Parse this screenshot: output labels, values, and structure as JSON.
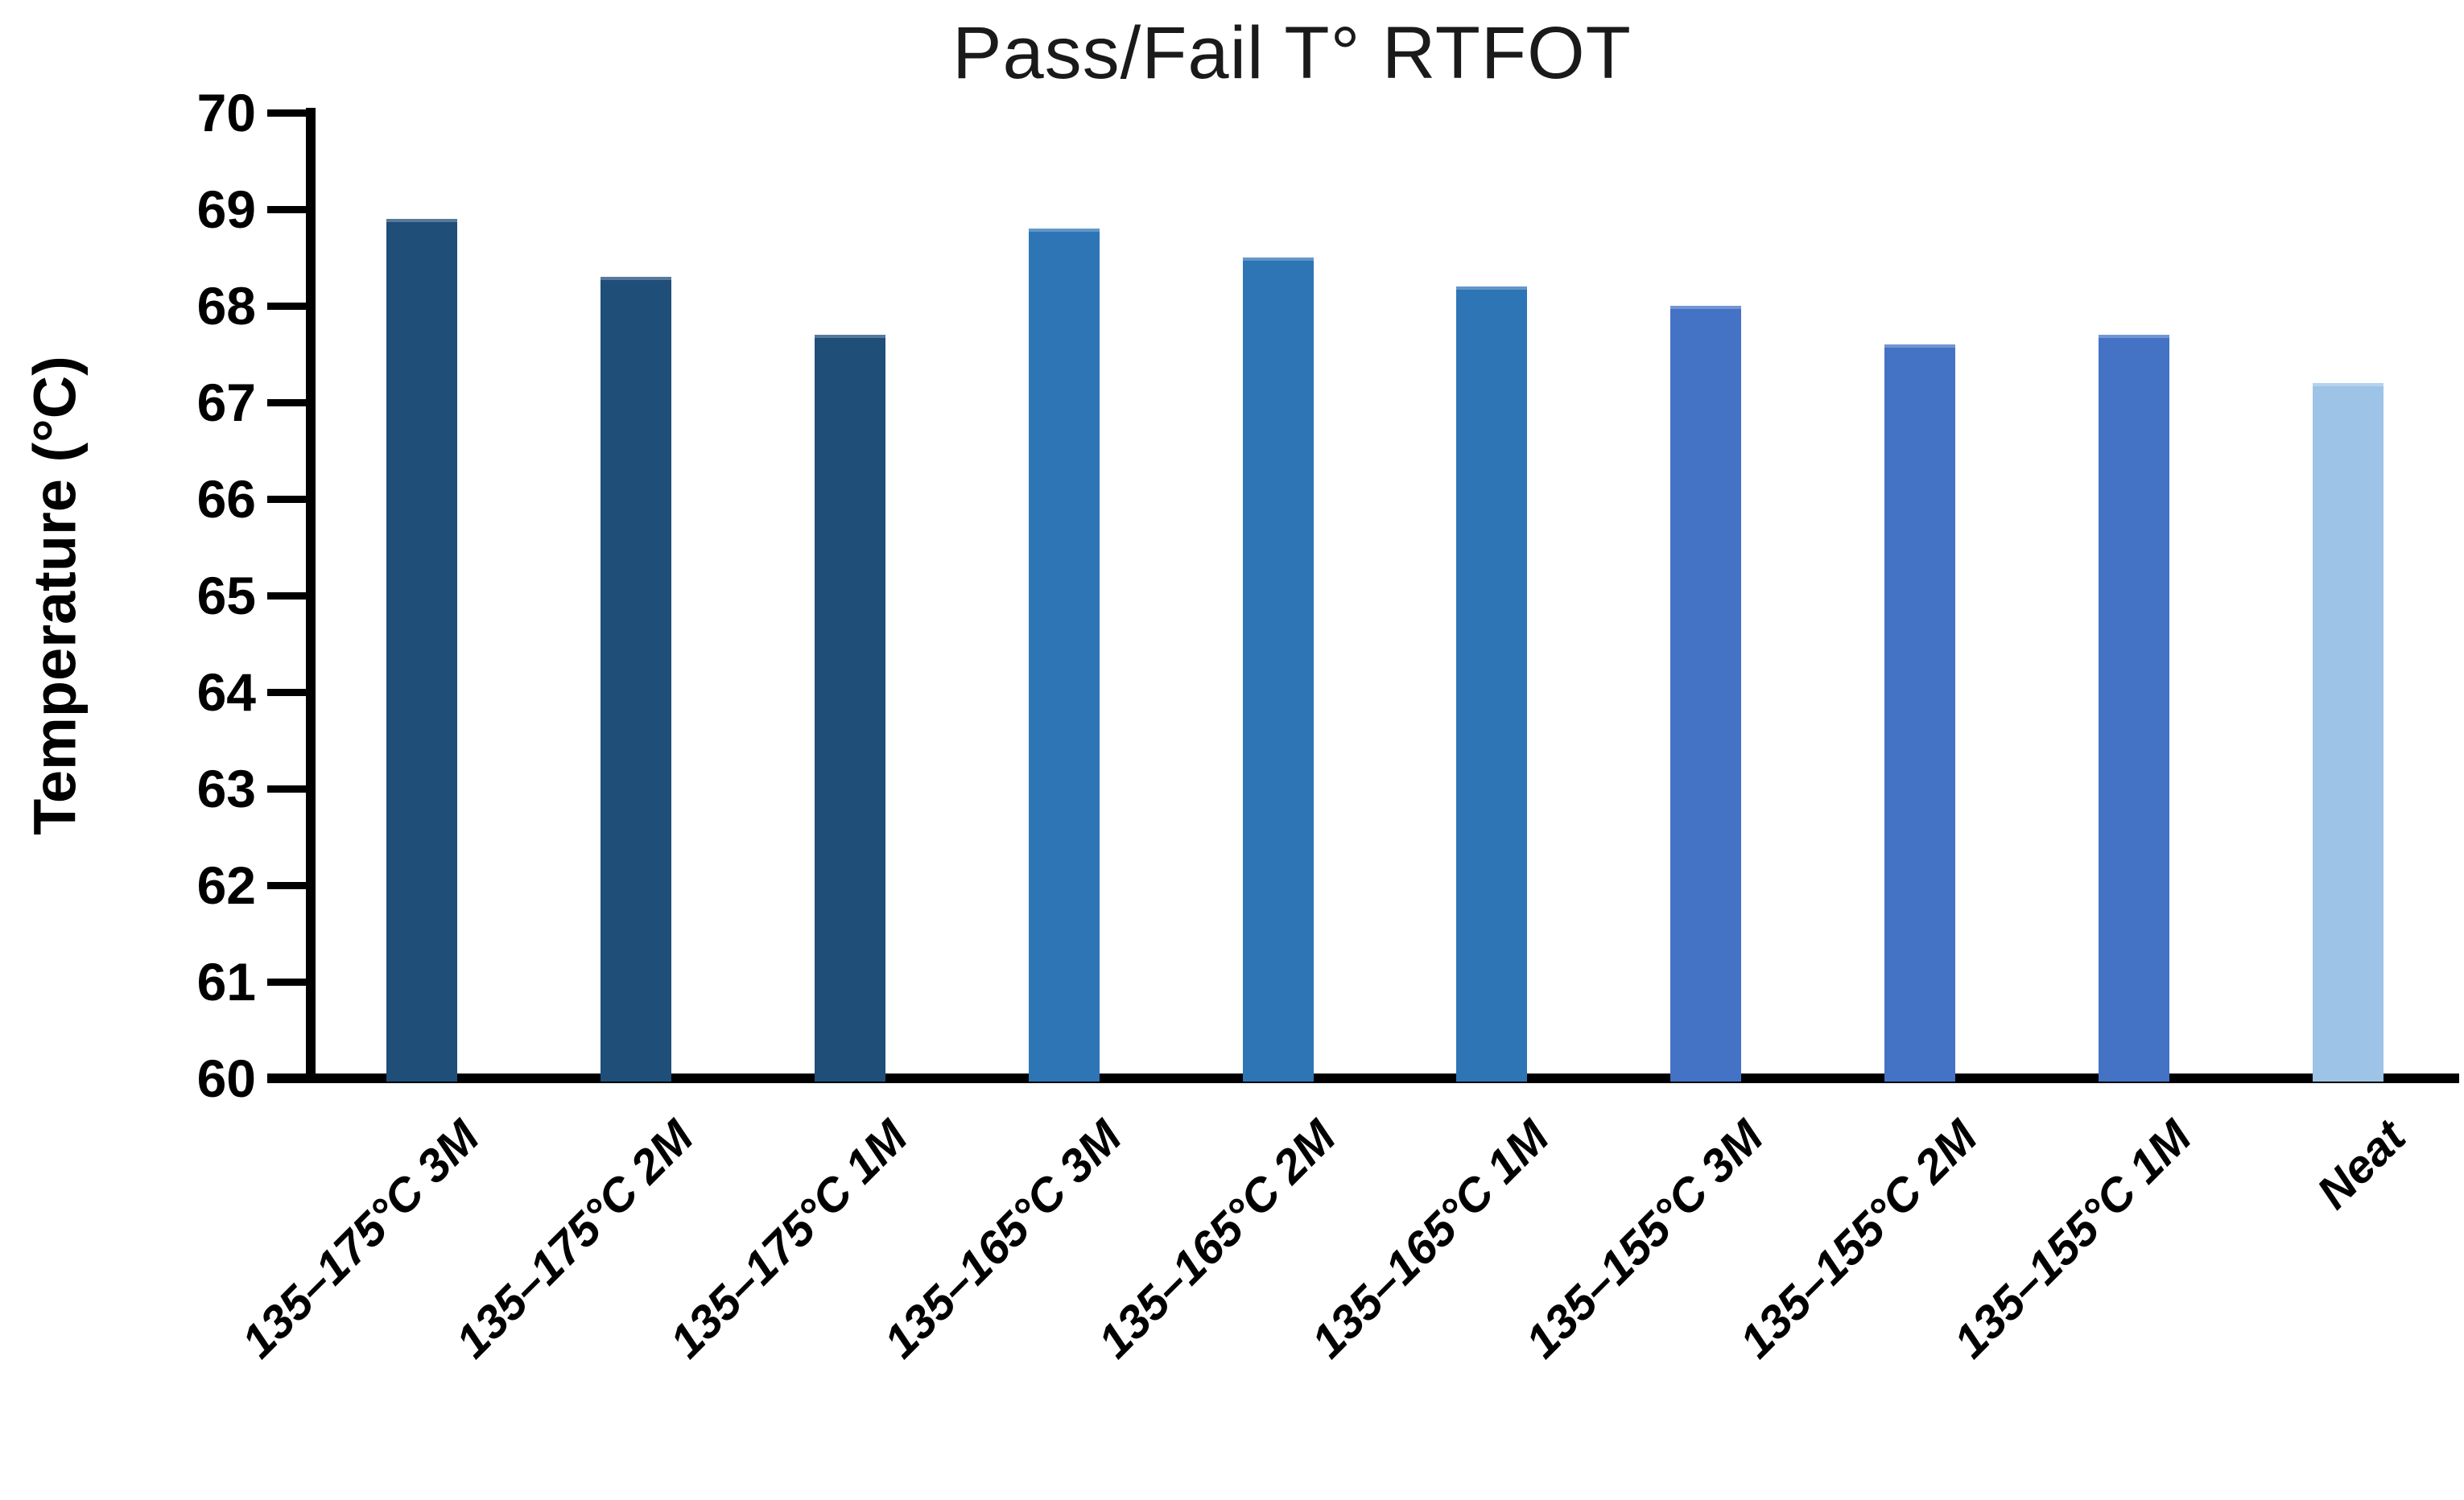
{
  "chart_data": {
    "type": "bar",
    "title": "Pass/Fail T° RTFOT",
    "xlabel": "",
    "ylabel": "Temperature (°C)",
    "ylim": [
      60,
      70
    ],
    "yticks": [
      60,
      61,
      62,
      63,
      64,
      65,
      66,
      67,
      68,
      69,
      70
    ],
    "grid": false,
    "legend": "none",
    "categories": [
      "135–175°C 3M",
      "135–175°C 2M",
      "135–175°C 1M",
      "135–165°C 3M",
      "135–165°C 2M",
      "135–165°C 1M",
      "135–155°C 3M",
      "135–155°C 2M",
      "135–155°C 1M",
      "Neat"
    ],
    "values": [
      68.9,
      68.3,
      67.7,
      68.8,
      68.5,
      68.2,
      68.0,
      67.6,
      67.7,
      67.2
    ],
    "bar_colors": [
      "#1F4E79",
      "#1F4E79",
      "#1F4E79",
      "#2E75B6",
      "#2E75B6",
      "#2E75B6",
      "#4472C4",
      "#4472C4",
      "#4472C4",
      "#9DC3E6"
    ],
    "axis_color": "#000000",
    "background_color": "#ffffff"
  }
}
